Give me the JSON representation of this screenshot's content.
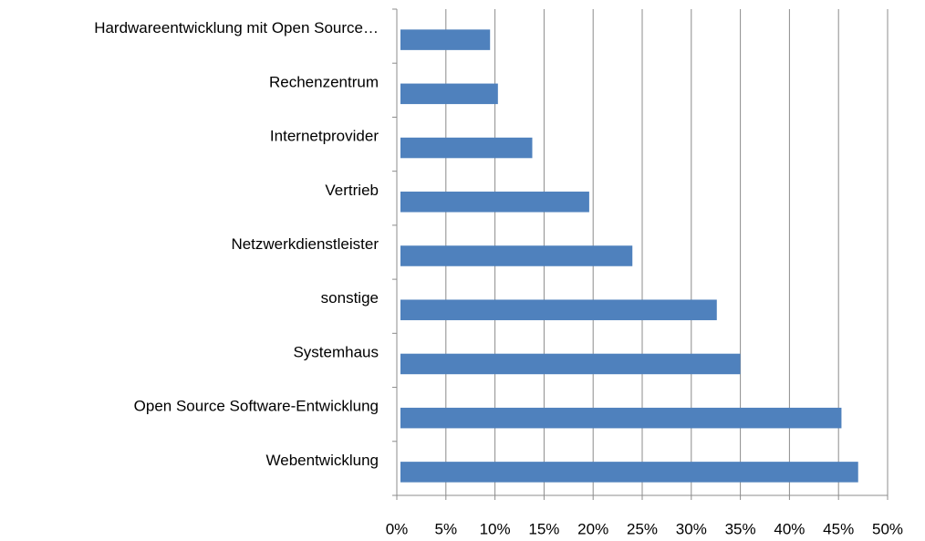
{
  "chart_data": {
    "type": "hbar",
    "categories": [
      "Hardwareentwicklung mit Open Source…",
      "Rechenzentrum",
      "Internetprovider",
      "Vertrieb",
      "Netzwerkdienstleister",
      "sonstige",
      "Systemhaus",
      "Open Source Software-Entwicklung",
      "Webentwicklung"
    ],
    "values": [
      9.5,
      10.3,
      13.8,
      19.6,
      24,
      32.6,
      35,
      45.3,
      47
    ],
    "color": "#4f81bd",
    "xlim": [
      0,
      50
    ],
    "xticks": [
      {
        "value": 0,
        "label": "0%"
      },
      {
        "value": 5,
        "label": "5%"
      },
      {
        "value": 10,
        "label": "10%"
      },
      {
        "value": 15,
        "label": "15%"
      },
      {
        "value": 20,
        "label": "20%"
      },
      {
        "value": 25,
        "label": "25%"
      },
      {
        "value": 30,
        "label": "30%"
      },
      {
        "value": 35,
        "label": "35%"
      },
      {
        "value": 40,
        "label": "40%"
      },
      {
        "value": 45,
        "label": "45%"
      },
      {
        "value": 50,
        "label": "50%"
      }
    ],
    "grid": true
  }
}
